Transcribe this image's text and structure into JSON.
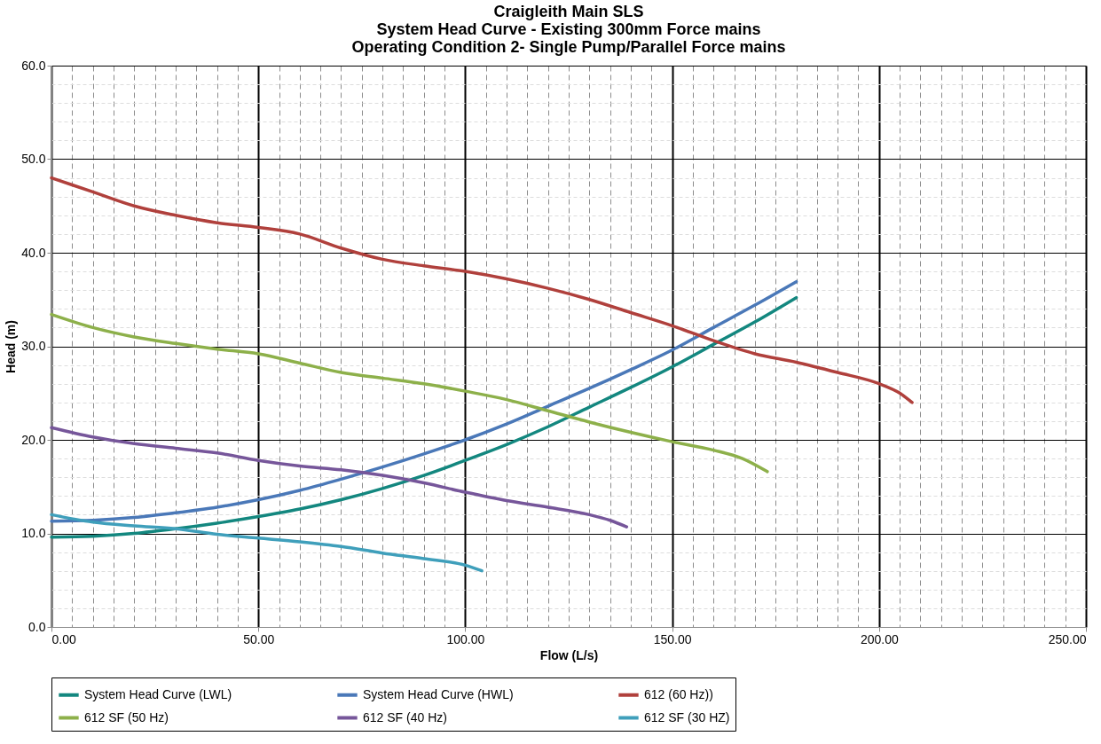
{
  "chart_data": {
    "type": "line",
    "title": "Craigleith Main SLS\nSystem Head Curve - Existing 300mm Force mains\nOperating Condition 2-  Single Pump/Parallel Force mains",
    "xlabel": "Flow (L/s)",
    "ylabel": "Head (m)",
    "xlim": [
      0,
      250
    ],
    "ylim": [
      0,
      60
    ],
    "xticks": [
      {
        "value": 0,
        "label": "0.00"
      },
      {
        "value": 5,
        "label": null
      },
      {
        "value": 10,
        "label": null
      },
      {
        "value": 15,
        "label": null
      },
      {
        "value": 20,
        "label": null
      },
      {
        "value": 25,
        "label": null
      },
      {
        "value": 30,
        "label": null
      },
      {
        "value": 35,
        "label": null
      },
      {
        "value": 40,
        "label": null
      },
      {
        "value": 45,
        "label": null
      },
      {
        "value": 50,
        "label": "50.00"
      },
      {
        "value": 55,
        "label": null
      },
      {
        "value": 60,
        "label": null
      },
      {
        "value": 65,
        "label": null
      },
      {
        "value": 70,
        "label": null
      },
      {
        "value": 75,
        "label": null
      },
      {
        "value": 80,
        "label": null
      },
      {
        "value": 85,
        "label": null
      },
      {
        "value": 90,
        "label": null
      },
      {
        "value": 95,
        "label": null
      },
      {
        "value": 100,
        "label": "100.00"
      },
      {
        "value": 105,
        "label": null
      },
      {
        "value": 110,
        "label": null
      },
      {
        "value": 115,
        "label": null
      },
      {
        "value": 120,
        "label": null
      },
      {
        "value": 125,
        "label": null
      },
      {
        "value": 130,
        "label": null
      },
      {
        "value": 135,
        "label": null
      },
      {
        "value": 140,
        "label": null
      },
      {
        "value": 145,
        "label": null
      },
      {
        "value": 150,
        "label": "150.00"
      },
      {
        "value": 155,
        "label": null
      },
      {
        "value": 160,
        "label": null
      },
      {
        "value": 165,
        "label": null
      },
      {
        "value": 170,
        "label": null
      },
      {
        "value": 175,
        "label": null
      },
      {
        "value": 180,
        "label": null
      },
      {
        "value": 185,
        "label": null
      },
      {
        "value": 190,
        "label": null
      },
      {
        "value": 195,
        "label": null
      },
      {
        "value": 200,
        "label": "200.00"
      },
      {
        "value": 205,
        "label": null
      },
      {
        "value": 210,
        "label": null
      },
      {
        "value": 215,
        "label": null
      },
      {
        "value": 220,
        "label": null
      },
      {
        "value": 225,
        "label": null
      },
      {
        "value": 230,
        "label": null
      },
      {
        "value": 235,
        "label": null
      },
      {
        "value": 240,
        "label": null
      },
      {
        "value": 245,
        "label": null
      },
      {
        "value": 250,
        "label": "250.00"
      }
    ],
    "yticks": [
      {
        "value": 0,
        "label": "0.0"
      },
      {
        "value": 2,
        "label": null
      },
      {
        "value": 4,
        "label": null
      },
      {
        "value": 6,
        "label": null
      },
      {
        "value": 8,
        "label": null
      },
      {
        "value": 10,
        "label": "10.0"
      },
      {
        "value": 12,
        "label": null
      },
      {
        "value": 14,
        "label": null
      },
      {
        "value": 16,
        "label": null
      },
      {
        "value": 18,
        "label": null
      },
      {
        "value": 20,
        "label": "20.0"
      },
      {
        "value": 22,
        "label": null
      },
      {
        "value": 24,
        "label": null
      },
      {
        "value": 26,
        "label": null
      },
      {
        "value": 28,
        "label": null
      },
      {
        "value": 30,
        "label": "30.0"
      },
      {
        "value": 32,
        "label": null
      },
      {
        "value": 34,
        "label": null
      },
      {
        "value": 36,
        "label": null
      },
      {
        "value": 38,
        "label": null
      },
      {
        "value": 40,
        "label": "40.0"
      },
      {
        "value": 42,
        "label": null
      },
      {
        "value": 44,
        "label": null
      },
      {
        "value": 46,
        "label": null
      },
      {
        "value": 48,
        "label": null
      },
      {
        "value": 50,
        "label": "50.0"
      },
      {
        "value": 52,
        "label": null
      },
      {
        "value": 54,
        "label": null
      },
      {
        "value": 56,
        "label": null
      },
      {
        "value": 58,
        "label": null
      },
      {
        "value": 60,
        "label": "60.0"
      }
    ],
    "grid": true,
    "legend": "bottom",
    "marker": "none",
    "line_style": "solid",
    "series": [
      {
        "name": "System Head Curve (LWL)",
        "color": "#13877f",
        "x": [
          0,
          10,
          20,
          30,
          40,
          50,
          60,
          70,
          80,
          90,
          100,
          110,
          120,
          130,
          140,
          150,
          160,
          170,
          180
        ],
        "values": [
          9.6,
          9.7,
          10.0,
          10.5,
          11.1,
          11.8,
          12.6,
          13.6,
          14.8,
          16.2,
          17.8,
          19.5,
          21.4,
          23.5,
          25.6,
          27.8,
          30.2,
          32.6,
          35.2
        ]
      },
      {
        "name": "System Head Curve (HWL)",
        "color": "#4a78b8",
        "x": [
          0,
          10,
          20,
          30,
          40,
          50,
          60,
          70,
          80,
          90,
          100,
          110,
          120,
          130,
          140,
          150,
          160,
          170,
          180
        ],
        "values": [
          11.3,
          11.4,
          11.7,
          12.2,
          12.8,
          13.6,
          14.6,
          15.8,
          17.1,
          18.5,
          20.0,
          21.7,
          23.6,
          25.5,
          27.5,
          29.6,
          32.0,
          34.4,
          36.9
        ]
      },
      {
        "name": "612 (60 Hz))",
        "color": "#b0403c",
        "x": [
          0,
          10,
          20,
          30,
          40,
          50,
          60,
          70,
          80,
          90,
          100,
          110,
          120,
          130,
          140,
          150,
          160,
          170,
          180,
          190,
          200,
          205,
          208
        ],
        "values": [
          48.0,
          46.5,
          45.0,
          44.0,
          43.2,
          42.7,
          42.0,
          40.5,
          39.3,
          38.6,
          38.0,
          37.2,
          36.2,
          35.0,
          33.6,
          32.2,
          30.6,
          29.2,
          28.3,
          27.2,
          26.0,
          25.0,
          24.0
        ]
      },
      {
        "name": "612 SF (50 Hz)",
        "color": "#8db04a",
        "x": [
          0,
          10,
          20,
          30,
          40,
          50,
          60,
          70,
          80,
          90,
          100,
          110,
          120,
          130,
          140,
          150,
          160,
          167,
          173
        ],
        "values": [
          33.4,
          32.0,
          31.0,
          30.3,
          29.7,
          29.2,
          28.2,
          27.2,
          26.6,
          26.0,
          25.2,
          24.3,
          23.1,
          21.9,
          20.8,
          19.8,
          18.9,
          18.0,
          16.6
        ]
      },
      {
        "name": "612 SF (40 Hz)",
        "color": "#76569a",
        "x": [
          0,
          10,
          20,
          30,
          40,
          50,
          60,
          70,
          80,
          90,
          100,
          110,
          120,
          130,
          135,
          139
        ],
        "values": [
          21.3,
          20.3,
          19.6,
          19.1,
          18.6,
          17.8,
          17.2,
          16.8,
          16.2,
          15.4,
          14.4,
          13.5,
          12.8,
          12.0,
          11.4,
          10.7
        ]
      },
      {
        "name": "612 SF (30 HZ)",
        "color": "#3f9fbb",
        "x": [
          0,
          10,
          20,
          30,
          40,
          50,
          60,
          70,
          80,
          90,
          100,
          104
        ],
        "values": [
          12.0,
          11.2,
          10.8,
          10.5,
          9.9,
          9.5,
          9.1,
          8.6,
          7.9,
          7.3,
          6.6,
          6.0
        ]
      }
    ]
  }
}
